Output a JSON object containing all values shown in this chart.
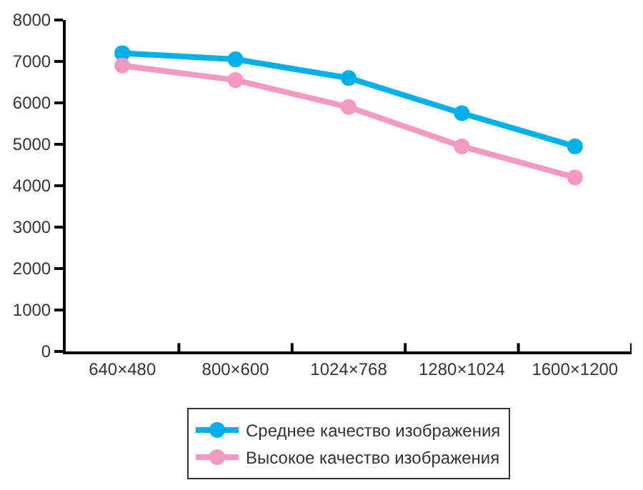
{
  "chart_data": {
    "type": "line",
    "categories": [
      "640×480",
      "800×600",
      "1024×768",
      "1280×1024",
      "1600×1200"
    ],
    "series": [
      {
        "name": "Среднее качество изображения",
        "color": "#00b0e8",
        "values": [
          7200,
          7050,
          6600,
          5750,
          4950
        ]
      },
      {
        "name": "Высокое качество изображения",
        "color": "#f49ac1",
        "values": [
          6900,
          6550,
          5900,
          4950,
          4200
        ]
      }
    ],
    "ylim": [
      0,
      8000
    ],
    "yticks": [
      0,
      1000,
      2000,
      3000,
      4000,
      5000,
      6000,
      7000,
      8000
    ],
    "grid": false,
    "legend": "bottom",
    "marker": "circle",
    "line_style": "solid"
  }
}
